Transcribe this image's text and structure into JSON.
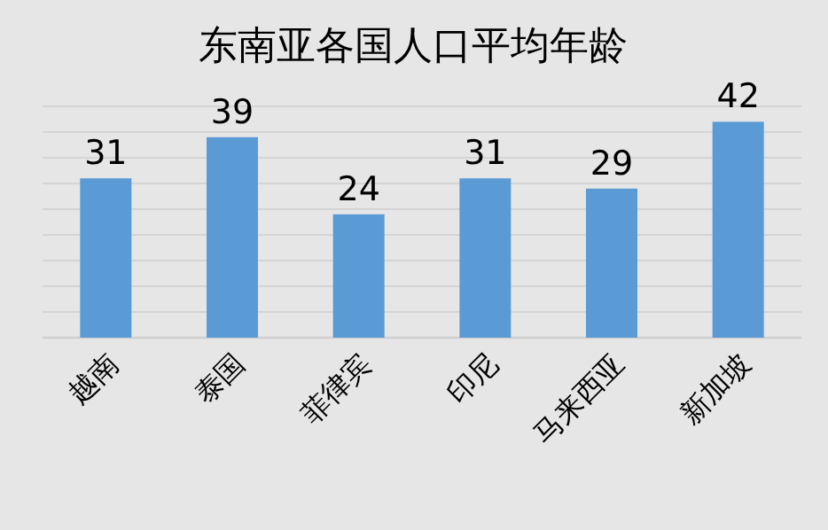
{
  "chart_data": {
    "type": "bar",
    "title": "东南亚各国人口平均年龄",
    "categories": [
      "越南",
      "泰国",
      "菲律宾",
      "印尼",
      "马来西亚",
      "新加坡"
    ],
    "values": [
      31,
      39,
      24,
      31,
      29,
      42
    ],
    "color": "#5b9bd5",
    "data_labels": true,
    "grid": "y",
    "tick_labels": "x",
    "ylim": [
      0,
      45
    ],
    "yticks": [
      {
        "value": 0,
        "label": null
      },
      {
        "value": 5,
        "label": null
      },
      {
        "value": 10,
        "label": null
      },
      {
        "value": 15,
        "label": null
      },
      {
        "value": 20,
        "label": null
      },
      {
        "value": 25,
        "label": null
      },
      {
        "value": 30,
        "label": null
      },
      {
        "value": 35,
        "label": null
      },
      {
        "value": 40,
        "label": null
      },
      {
        "value": 45,
        "label": null
      }
    ]
  }
}
